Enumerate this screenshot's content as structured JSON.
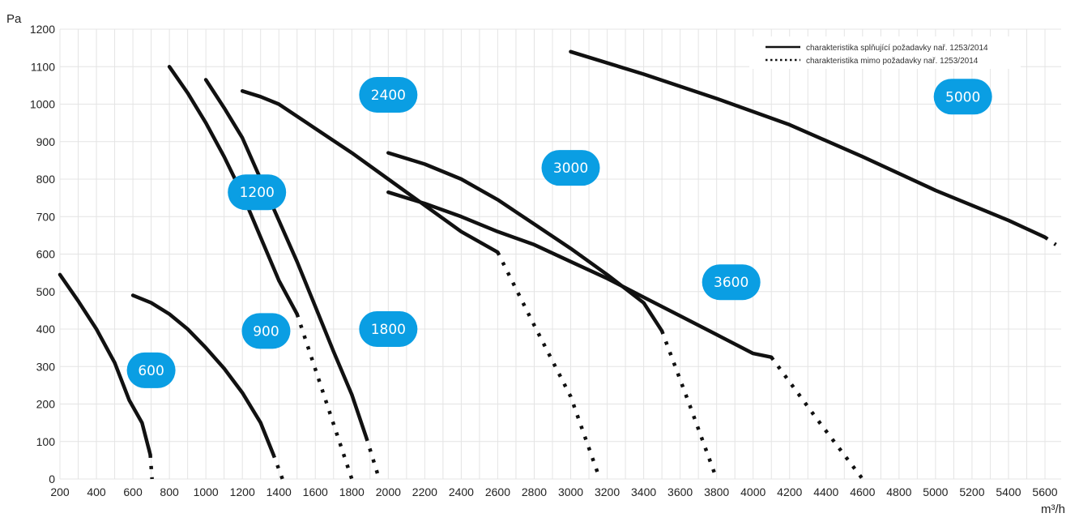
{
  "chart_data": {
    "type": "line",
    "title": "",
    "xlabel": "m³/h",
    "ylabel": "Pa",
    "xlim": [
      200,
      5700
    ],
    "ylim": [
      0,
      1200
    ],
    "x_ticks": [
      "200",
      "400",
      "600",
      "800",
      "1000",
      "1200",
      "1400",
      "1600",
      "1800",
      "2000",
      "2200",
      "2400",
      "2600",
      "2800",
      "3000",
      "3200",
      "3400",
      "3600",
      "3800",
      "4000",
      "4200",
      "4400",
      "4600",
      "4800",
      "5000",
      "5200",
      "5400",
      "5600"
    ],
    "y_ticks": [
      "0",
      "100",
      "200",
      "300",
      "400",
      "500",
      "600",
      "700",
      "800",
      "900",
      "1000",
      "1100",
      "1200"
    ],
    "grid": true,
    "legend": {
      "placement": "top-right",
      "entries": [
        {
          "style": "solid",
          "label": "charakteristika splňující požadavky nař. 1253/2014"
        },
        {
          "style": "dotted",
          "label": "charakteristika mimo požadavky nař. 1253/2014"
        }
      ]
    },
    "series": [
      {
        "name": "600",
        "label_at": [
          700,
          290
        ],
        "solid": [
          [
            200,
            545
          ],
          [
            300,
            475
          ],
          [
            400,
            400
          ],
          [
            500,
            310
          ],
          [
            580,
            210
          ],
          [
            650,
            150
          ],
          [
            695,
            65
          ]
        ],
        "dotted": [
          [
            695,
            65
          ],
          [
            705,
            0
          ]
        ]
      },
      {
        "name": "900",
        "label_at": [
          1330,
          395
        ],
        "solid": [
          [
            600,
            490
          ],
          [
            700,
            470
          ],
          [
            800,
            440
          ],
          [
            900,
            400
          ],
          [
            1000,
            350
          ],
          [
            1100,
            295
          ],
          [
            1200,
            230
          ],
          [
            1300,
            150
          ],
          [
            1370,
            65
          ]
        ],
        "dotted": [
          [
            1370,
            65
          ],
          [
            1420,
            0
          ]
        ]
      },
      {
        "name": "1200",
        "label_at": [
          1280,
          765
        ],
        "solid": [
          [
            800,
            1100
          ],
          [
            900,
            1030
          ],
          [
            1000,
            950
          ],
          [
            1100,
            860
          ],
          [
            1200,
            760
          ],
          [
            1300,
            645
          ],
          [
            1400,
            530
          ],
          [
            1500,
            440
          ]
        ],
        "dotted": [
          [
            1500,
            440
          ],
          [
            1650,
            220
          ],
          [
            1800,
            0
          ]
        ]
      },
      {
        "name": "1800",
        "label_at": [
          2000,
          400
        ],
        "solid": [
          [
            1000,
            1065
          ],
          [
            1100,
            990
          ],
          [
            1200,
            910
          ],
          [
            1300,
            800
          ],
          [
            1400,
            690
          ],
          [
            1500,
            580
          ],
          [
            1600,
            460
          ],
          [
            1700,
            340
          ],
          [
            1800,
            225
          ],
          [
            1880,
            110
          ]
        ],
        "dotted": [
          [
            1880,
            110
          ],
          [
            1950,
            0
          ]
        ]
      },
      {
        "name": "2400",
        "label_at": [
          2000,
          1025
        ],
        "solid": [
          [
            1200,
            1035
          ],
          [
            1300,
            1020
          ],
          [
            1400,
            1000
          ],
          [
            1600,
            935
          ],
          [
            1800,
            870
          ],
          [
            2000,
            800
          ],
          [
            2200,
            730
          ],
          [
            2400,
            660
          ],
          [
            2600,
            605
          ]
        ],
        "dotted": [
          [
            2600,
            605
          ],
          [
            2800,
            410
          ],
          [
            3000,
            220
          ],
          [
            3160,
            0
          ]
        ]
      },
      {
        "name": "3000",
        "label_at": [
          3000,
          830
        ],
        "solid": [
          [
            2000,
            870
          ],
          [
            2200,
            840
          ],
          [
            2400,
            800
          ],
          [
            2600,
            745
          ],
          [
            2800,
            680
          ],
          [
            3000,
            615
          ],
          [
            3200,
            545
          ],
          [
            3400,
            470
          ],
          [
            3500,
            395
          ]
        ],
        "dotted": [
          [
            3500,
            395
          ],
          [
            3650,
            200
          ],
          [
            3800,
            0
          ]
        ]
      },
      {
        "name": "3600",
        "label_at": [
          3880,
          525
        ],
        "solid": [
          [
            2000,
            765
          ],
          [
            2200,
            735
          ],
          [
            2400,
            700
          ],
          [
            2600,
            660
          ],
          [
            2800,
            625
          ],
          [
            3000,
            580
          ],
          [
            3200,
            535
          ],
          [
            3400,
            485
          ],
          [
            3600,
            435
          ],
          [
            3800,
            385
          ],
          [
            4000,
            335
          ],
          [
            4100,
            325
          ]
        ],
        "dotted": [
          [
            4100,
            325
          ],
          [
            4350,
            160
          ],
          [
            4600,
            0
          ]
        ]
      },
      {
        "name": "5000",
        "label_at": [
          5150,
          1020
        ],
        "solid": [
          [
            3000,
            1140
          ],
          [
            3400,
            1080
          ],
          [
            3800,
            1015
          ],
          [
            4200,
            945
          ],
          [
            4600,
            860
          ],
          [
            5000,
            770
          ],
          [
            5400,
            690
          ],
          [
            5600,
            645
          ]
        ],
        "dotted": [
          [
            5600,
            645
          ],
          [
            5660,
            625
          ]
        ]
      }
    ]
  }
}
